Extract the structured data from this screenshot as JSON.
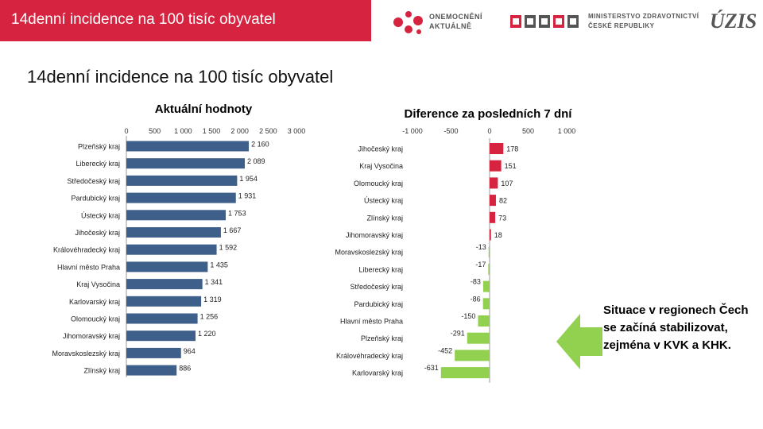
{
  "header": {
    "title": "14denní incidence na 100 tisíc obyvatel",
    "logo_oa_line1": "ONEMOCNĚNÍ",
    "logo_oa_line2": "AKTUÁLNĚ",
    "logo_mz_line1": "MINISTERSTVO ZDRAVOTNICTVÍ",
    "logo_mz_line2": "ČESKÉ REPUBLIKY",
    "logo_uzis": "ÚZIS"
  },
  "page_title": "14denní incidence na 100 tisíc obyvatel",
  "note": "Situace v regionech Čech se začíná stabilizovat, zejména v KVK a KHK.",
  "colors": {
    "bar_current": "#3d5f8a",
    "bar_positive": "#d6233f",
    "bar_negative": "#92d050",
    "header": "#d6233f",
    "arrow": "#92d050"
  },
  "chart_data": [
    {
      "type": "bar",
      "orientation": "horizontal",
      "title": "Aktuální hodnoty",
      "xlim": [
        0,
        3000
      ],
      "ticks": [
        0,
        500,
        1000,
        1500,
        2000,
        2500,
        3000
      ],
      "tick_labels": [
        "0",
        "500",
        "1 000",
        "1 500",
        "2 000",
        "2 500",
        "3 000"
      ],
      "categories": [
        "Plzeňský kraj",
        "Liberecký kraj",
        "Středočeský kraj",
        "Pardubický kraj",
        "Ústecký kraj",
        "Jihočeský kraj",
        "Královéhradecký kraj",
        "Hlavní město Praha",
        "Kraj Vysočina",
        "Karlovarský kraj",
        "Olomoucký kraj",
        "Jihomoravský kraj",
        "Moravskoslezský kraj",
        "Zlínský kraj"
      ],
      "values": [
        2160,
        2089,
        1954,
        1931,
        1753,
        1667,
        1592,
        1435,
        1341,
        1319,
        1256,
        1220,
        964,
        886
      ],
      "value_labels": [
        "2 160",
        "2 089",
        "1 954",
        "1 931",
        "1 753",
        "1 667",
        "1 592",
        "1 435",
        "1 341",
        "1 319",
        "1 256",
        "1 220",
        "964",
        "886"
      ]
    },
    {
      "type": "bar",
      "orientation": "horizontal",
      "title": "Diference za posledních 7 dní",
      "xlim": [
        -1000,
        1000
      ],
      "ticks": [
        -1000,
        -500,
        0,
        500,
        1000
      ],
      "tick_labels": [
        "-1 000",
        "-500",
        "0",
        "500",
        "1 000"
      ],
      "categories": [
        "Jihočeský kraj",
        "Kraj Vysočina",
        "Olomoucký kraj",
        "Ústecký kraj",
        "Zlínský kraj",
        "Jihomoravský kraj",
        "Moravskoslezský kraj",
        "Liberecký kraj",
        "Středočeský kraj",
        "Pardubický kraj",
        "Hlavní město Praha",
        "Plzeňský kraj",
        "Královéhradecký kraj",
        "Karlovarský kraj"
      ],
      "values": [
        178,
        151,
        107,
        82,
        73,
        18,
        -13,
        -17,
        -83,
        -86,
        -150,
        -291,
        -452,
        -631
      ],
      "value_labels": [
        "178",
        "151",
        "107",
        "82",
        "73",
        "18",
        "-13",
        "-17",
        "-83",
        "-86",
        "-150",
        "-291",
        "-452",
        "-631"
      ]
    }
  ]
}
